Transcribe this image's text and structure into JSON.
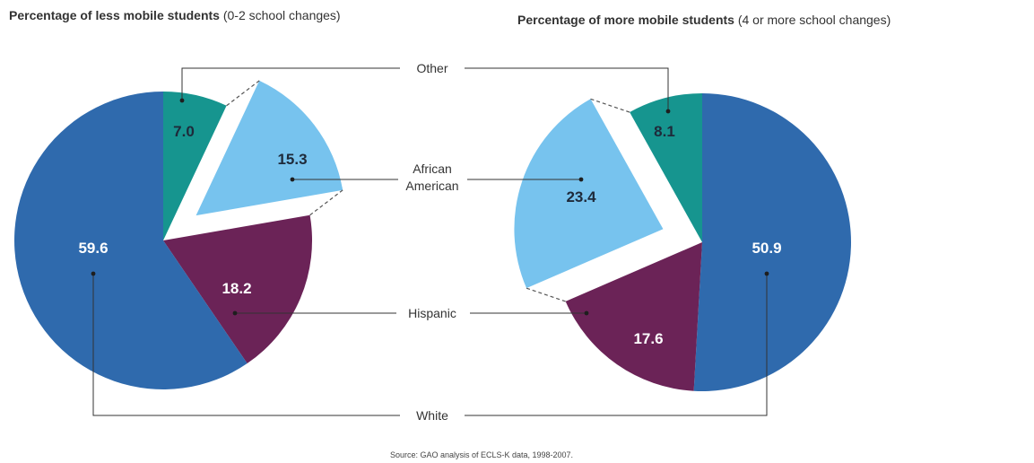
{
  "colors": {
    "White": "#2f6aad",
    "Other": "#16958f",
    "African American": "#77c3ee",
    "Hispanic": "#6b2357",
    "leader": "#333333"
  },
  "labels": {
    "other": "Other",
    "african_american_1": "African",
    "african_american_2": "American",
    "hispanic": "Hispanic",
    "white": "White"
  },
  "source": "Source: GAO analysis of ECLS-K data, 1998-2007.",
  "chart_data": [
    {
      "type": "pie",
      "title_bold": "Percentage of less mobile students",
      "title_rest": " (0-2 school changes)",
      "slices": [
        {
          "name": "Other",
          "value": 7.0,
          "label": "7.0"
        },
        {
          "name": "African American",
          "value": 15.3,
          "label": "15.3",
          "exploded": true
        },
        {
          "name": "Hispanic",
          "value": 18.2,
          "label": "18.2"
        },
        {
          "name": "White",
          "value": 59.6,
          "label": "59.6"
        }
      ]
    },
    {
      "type": "pie",
      "title_bold": "Percentage of more mobile students",
      "title_rest": " (4 or more school changes)",
      "slices": [
        {
          "name": "White",
          "value": 50.9,
          "label": "50.9"
        },
        {
          "name": "Hispanic",
          "value": 17.6,
          "label": "17.6"
        },
        {
          "name": "African American",
          "value": 23.4,
          "label": "23.4",
          "exploded": true
        },
        {
          "name": "Other",
          "value": 8.1,
          "label": "8.1"
        }
      ]
    }
  ]
}
